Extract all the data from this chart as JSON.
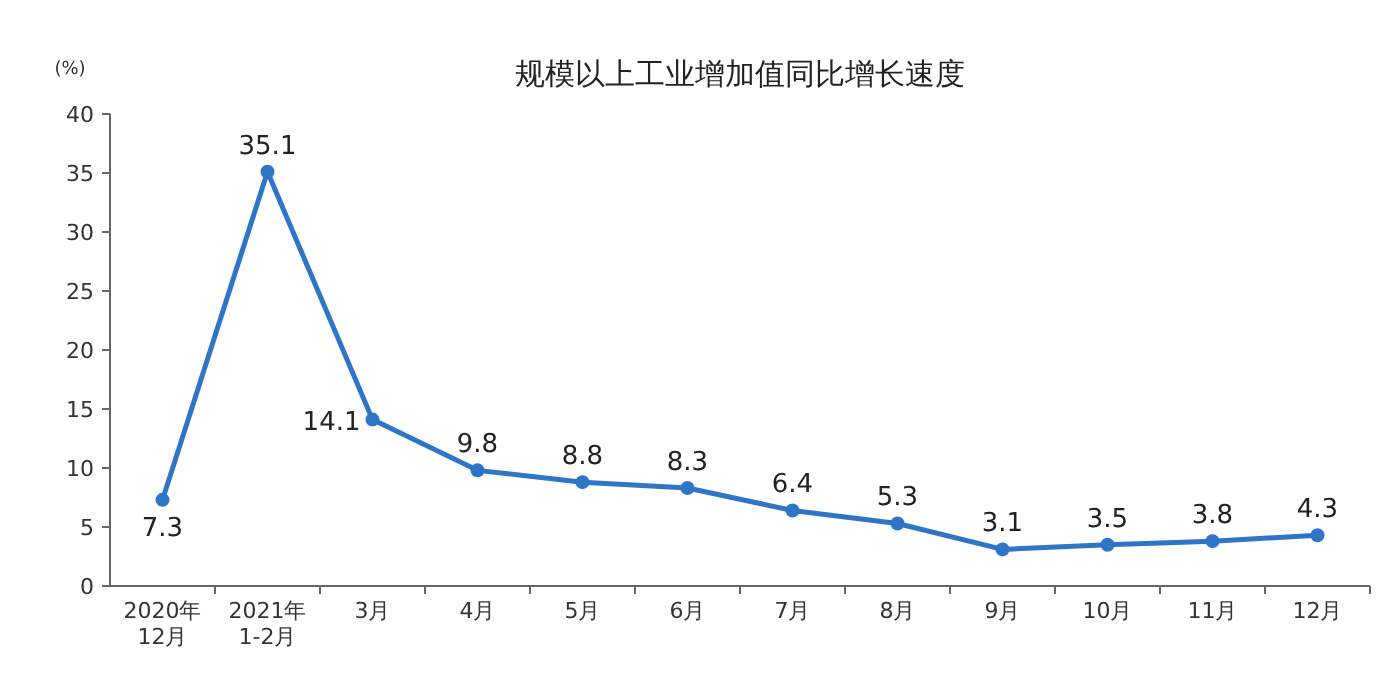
{
  "chart_data": {
    "type": "line",
    "title": "规模以上工业增加值同比增长速度",
    "ylabel": "(%)",
    "categories": [
      "2020年\n12月",
      "2021年\n1-2月",
      "3月",
      "4月",
      "5月",
      "6月",
      "7月",
      "8月",
      "9月",
      "10月",
      "11月",
      "12月"
    ],
    "series": [
      {
        "color": "#2e75c8",
        "values": [
          7.3,
          35.1,
          14.1,
          9.8,
          8.8,
          8.3,
          6.4,
          5.3,
          3.1,
          3.5,
          3.8,
          4.3
        ]
      }
    ],
    "ylim": [
      0,
      40
    ],
    "yticks": [
      0,
      5,
      10,
      15,
      20,
      25,
      30,
      35,
      40
    ],
    "marker": "circle",
    "line_style": "solid",
    "data_labels": true
  }
}
